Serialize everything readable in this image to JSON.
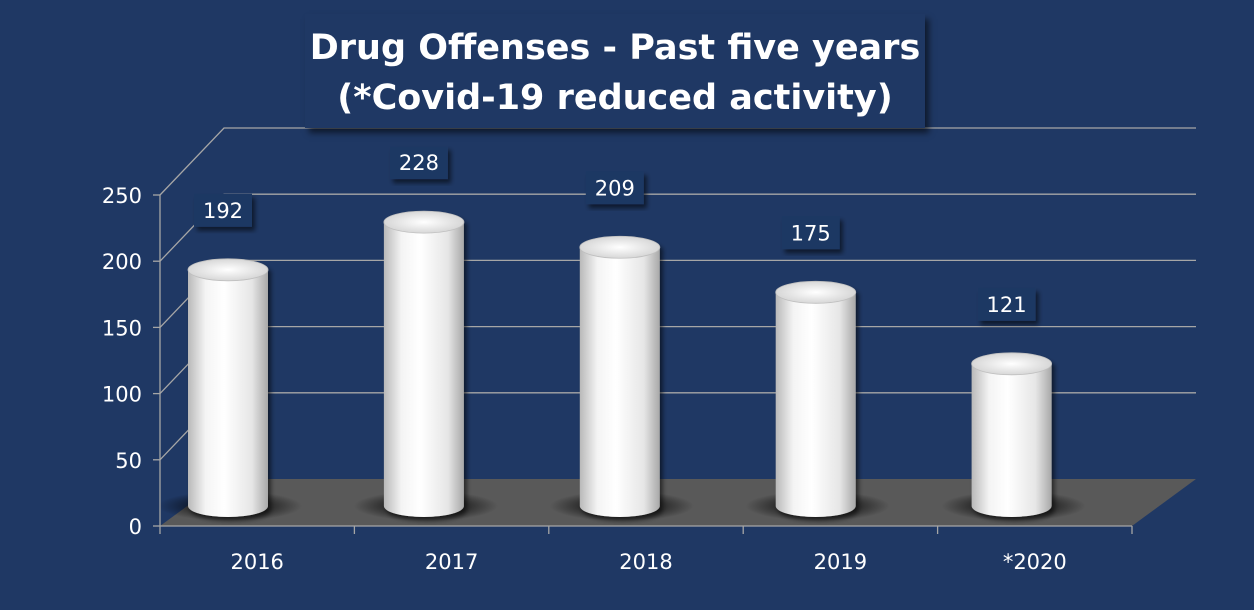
{
  "chart_data": {
    "type": "bar",
    "title": "Drug Offenses - Past five years",
    "subtitle": "(*Covid-19 reduced activity)",
    "categories": [
      "2016",
      "2017",
      "2018",
      "2019",
      "*2020"
    ],
    "values": [
      192,
      228,
      209,
      175,
      121
    ],
    "data_labels": [
      "192",
      "228",
      "209",
      "175",
      "121"
    ],
    "ylim": [
      0,
      250
    ],
    "y_ticks": [
      "0",
      "50",
      "100",
      "150",
      "200",
      "250"
    ],
    "grid": true,
    "legend": "none",
    "style": "3d-cylinder"
  },
  "colors": {
    "background": "#1f3864",
    "grid": "#a6a6a6",
    "floor": "#595959",
    "text": "#ffffff",
    "cylinder": "#ffffff"
  }
}
